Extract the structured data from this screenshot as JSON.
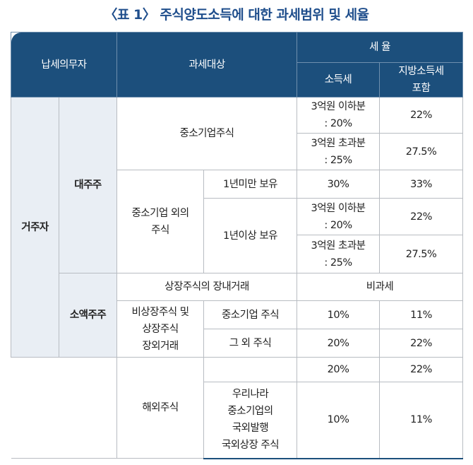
{
  "title": "〈표 1〉 주식양도소득에 대한 과세범위 및 세율",
  "header": {
    "taxpayer": "납세의무자",
    "target": "과세대상",
    "rate": "세 율",
    "income_tax": "소득세",
    "local_tax": "지방소득세\n포함"
  },
  "rows": [
    [
      "거주자",
      "대주주",
      "중소기업주식",
      "3억원 이하분\n: 20%",
      "22%"
    ],
    [
      "3억원 초과분\n: 25%",
      "27.5%"
    ],
    [
      "중소기업 외의\n주식",
      "1년미만 보유",
      "30%",
      "33%"
    ],
    [
      "1년이상 보유",
      "3억원 이하분\n: 20%",
      "22%"
    ],
    [
      "3억원 초과분\n: 25%",
      "27.5%"
    ],
    [
      "소액주주",
      "상장주식의 장내거래",
      "비과세"
    ],
    [
      "비상장주식 및\n상장주식\n장외거래",
      "중소기업 주식",
      "10%",
      "11%"
    ],
    [
      "그 외 주식",
      "20%",
      "22%"
    ],
    [
      "해외주식",
      "20%",
      "22%"
    ],
    [
      "우리나라\n중소기업의\n국외발행\n국외상장 주식",
      "10%",
      "11%"
    ]
  ]
}
